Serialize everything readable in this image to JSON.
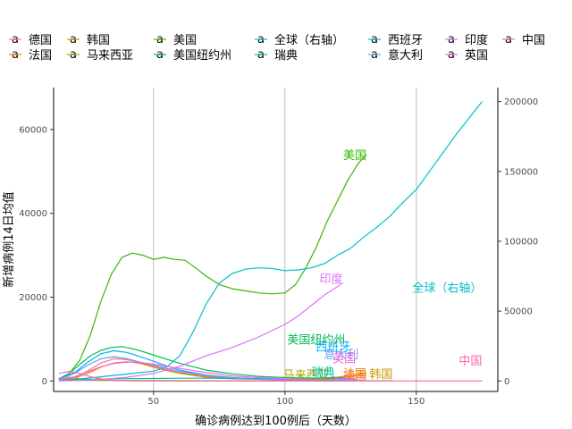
{
  "chart_data": {
    "type": "line",
    "xlabel": "确诊病例达到100例后（天数）",
    "ylabel": "新增病例14日均值",
    "xlim": [
      12,
      181
    ],
    "ylim_left": [
      -2500,
      70000
    ],
    "ylim_right": [
      -7500,
      210000
    ],
    "x_ticks": [
      50,
      100,
      150
    ],
    "y_ticks_left": [
      0,
      20000,
      40000,
      60000
    ],
    "y_ticks_right": [
      0,
      50000,
      100000,
      150000,
      200000
    ],
    "grid": "vertical major lines only",
    "legend_position": "top",
    "series": [
      {
        "name": "德国",
        "color": "#F8766D",
        "axis": "left",
        "x": [
          14,
          20,
          25,
          30,
          35,
          40,
          45,
          50,
          55,
          60,
          70,
          80,
          90,
          100,
          110,
          120,
          128,
          131
        ],
        "y": [
          150,
          800,
          2400,
          4300,
          5300,
          5100,
          4400,
          3500,
          2700,
          2000,
          1100,
          700,
          500,
          450,
          550,
          900,
          1200,
          1300
        ]
      },
      {
        "name": "法国",
        "color": "#E58700",
        "axis": "left",
        "x": [
          14,
          20,
          25,
          30,
          35,
          40,
          45,
          50,
          55,
          60,
          70,
          80,
          90,
          100,
          110,
          120,
          128,
          131
        ],
        "y": [
          200,
          700,
          1800,
          3300,
          4300,
          4600,
          4200,
          3300,
          2500,
          1800,
          900,
          500,
          400,
          450,
          600,
          900,
          1600,
          1900
        ]
      },
      {
        "name": "韩国",
        "color": "#C99800",
        "axis": "left",
        "x": [
          14,
          18,
          22,
          26,
          30,
          35,
          40,
          50,
          60,
          70,
          80,
          90,
          100,
          110,
          120,
          130,
          141
        ],
        "y": [
          250,
          900,
          500,
          350,
          200,
          120,
          90,
          40,
          20,
          15,
          20,
          40,
          50,
          50,
          45,
          50,
          60
        ],
        "end_label_y": 1800
      },
      {
        "name": "马来西亚",
        "color": "#A3A500",
        "axis": "left",
        "x": [
          14,
          20,
          30,
          40,
          50,
          60,
          70,
          80,
          90,
          100,
          110,
          117
        ],
        "y": [
          80,
          150,
          150,
          130,
          100,
          70,
          50,
          40,
          25,
          15,
          10,
          5
        ],
        "end_label_y": 1500
      },
      {
        "name": "美国",
        "color": "#39B600",
        "axis": "left",
        "x": [
          14,
          18,
          22,
          26,
          30,
          34,
          38,
          42,
          46,
          50,
          54,
          58,
          62,
          66,
          70,
          75,
          80,
          85,
          90,
          95,
          100,
          104,
          108,
          112,
          116,
          120,
          124,
          128,
          131
        ],
        "y": [
          500,
          1800,
          5000,
          11000,
          19000,
          25500,
          29500,
          30500,
          30000,
          29000,
          29500,
          29000,
          28800,
          27000,
          25000,
          23000,
          22000,
          21500,
          21000,
          20800,
          21000,
          23000,
          27000,
          32000,
          38000,
          43000,
          48000,
          52000,
          54000
        ]
      },
      {
        "name": "美国纽约州",
        "color": "#00BB4E",
        "axis": "left",
        "x": [
          14,
          18,
          22,
          26,
          30,
          34,
          38,
          42,
          46,
          50,
          55,
          60,
          70,
          80,
          90,
          100,
          110,
          120,
          123
        ],
        "y": [
          500,
          1800,
          4000,
          6000,
          7300,
          8000,
          8200,
          7700,
          7000,
          6200,
          5200,
          4200,
          2600,
          1700,
          1100,
          800,
          700,
          700,
          700
        ],
        "end_label_y": 10000
      },
      {
        "name": "全球（右轴）",
        "color": "#00BFC4",
        "axis": "right",
        "x": [
          14,
          20,
          25,
          30,
          35,
          40,
          45,
          50,
          55,
          60,
          65,
          70,
          75,
          80,
          85,
          90,
          95,
          100,
          105,
          110,
          115,
          120,
          125,
          130,
          135,
          140,
          145,
          150,
          155,
          160,
          165,
          170,
          175
        ],
        "y": [
          500,
          1200,
          2000,
          3000,
          4000,
          5000,
          6000,
          7000,
          10000,
          18000,
          35000,
          55000,
          70000,
          77000,
          80000,
          81000,
          80500,
          79000,
          79500,
          81000,
          84000,
          90000,
          95000,
          103000,
          110000,
          118000,
          128000,
          137000,
          150000,
          163000,
          176000,
          188000,
          200000
        ],
        "end_label_y": 67000
      },
      {
        "name": "瑞典",
        "color": "#00C1A3",
        "axis": "left",
        "x": [
          14,
          20,
          30,
          40,
          50,
          60,
          70,
          80,
          90,
          100,
          110,
          119
        ],
        "y": [
          100,
          300,
          450,
          550,
          600,
          650,
          650,
          600,
          550,
          500,
          450,
          400
        ],
        "end_label_y": 2200
      },
      {
        "name": "西班牙",
        "color": "#00B0F6",
        "axis": "left",
        "x": [
          14,
          20,
          25,
          30,
          35,
          40,
          45,
          50,
          55,
          60,
          70,
          80,
          90,
          100,
          110,
          120,
          125
        ],
        "y": [
          500,
          2000,
          4500,
          6500,
          7200,
          6800,
          5800,
          4700,
          3600,
          2600,
          1400,
          800,
          500,
          300,
          300,
          500,
          700
        ],
        "end_label_y": 8300
      },
      {
        "name": "意大利",
        "color": "#619CFF",
        "axis": "left",
        "x": [
          14,
          20,
          25,
          30,
          35,
          40,
          45,
          50,
          55,
          60,
          70,
          80,
          90,
          100,
          110,
          120,
          128
        ],
        "y": [
          400,
          1800,
          3800,
          5300,
          5800,
          5300,
          4500,
          3800,
          3000,
          2300,
          1300,
          700,
          400,
          250,
          200,
          200,
          250
        ],
        "end_label_y": 6500
      },
      {
        "name": "印度",
        "color": "#DC71FA",
        "axis": "left",
        "x": [
          14,
          20,
          25,
          30,
          40,
          50,
          60,
          70,
          80,
          90,
          100,
          105,
          110,
          115,
          120,
          122
        ],
        "y": [
          40,
          100,
          200,
          350,
          900,
          1800,
          3500,
          6000,
          8000,
          10500,
          13500,
          15500,
          18000,
          20500,
          22500,
          23500
        ],
        "end_label_y": 24500
      },
      {
        "name": "英国",
        "color": "#F564E3",
        "axis": "left",
        "x": [
          14,
          20,
          25,
          30,
          35,
          40,
          45,
          50,
          55,
          60,
          70,
          80,
          90,
          100,
          110,
          120,
          127
        ],
        "y": [
          300,
          1000,
          2200,
          3400,
          4200,
          4500,
          4400,
          4000,
          3500,
          3000,
          2000,
          1200,
          800,
          500,
          400,
          450,
          500
        ],
        "end_label_y": 5500
      },
      {
        "name": "中国",
        "color": "#FF64B0",
        "axis": "left",
        "x": [
          14,
          18,
          22,
          26,
          30,
          35,
          40,
          50,
          60,
          80,
          100,
          120,
          140,
          160,
          175
        ],
        "y": [
          1800,
          2300,
          1800,
          1000,
          500,
          150,
          60,
          30,
          20,
          15,
          15,
          15,
          15,
          15,
          15
        ],
        "end_label_y": 5000
      }
    ]
  }
}
